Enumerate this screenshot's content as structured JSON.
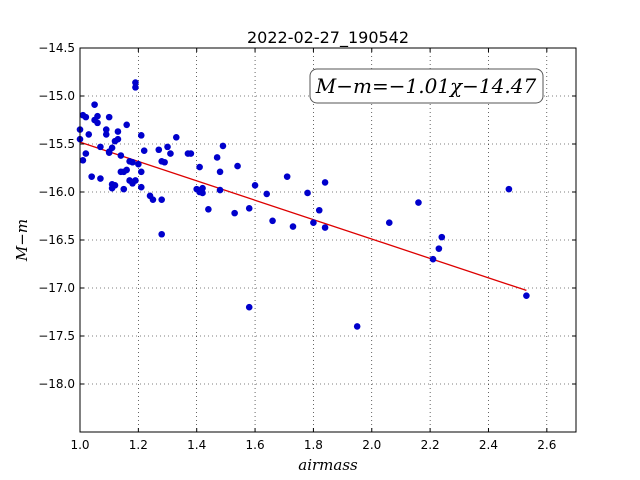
{
  "chart_data": {
    "type": "scatter",
    "title": "2022-02-27_190542",
    "xlabel": "airmass",
    "ylabel": "M−m",
    "annotation": "M−m=−1.01χ−14.47",
    "xlim": [
      1.0,
      2.7
    ],
    "ylim": [
      -18.5,
      -14.5
    ],
    "y_inverted": true,
    "grid": true,
    "x_ticks": [
      "1.0",
      "1.2",
      "1.4",
      "1.6",
      "1.8",
      "2.0",
      "2.2",
      "2.4",
      "2.6"
    ],
    "y_ticks": [
      "−14.5",
      "−15.0",
      "−15.5",
      "−16.0",
      "−16.5",
      "−17.0",
      "−17.5",
      "−18.0"
    ],
    "point_color": "#0000cc",
    "fit_color": "#dd0000",
    "fit": {
      "slope": -1.01,
      "intercept": -14.47,
      "x_range": [
        1.0,
        2.53
      ]
    },
    "points": [
      [
        1.0,
        -15.35
      ],
      [
        1.0,
        -15.45
      ],
      [
        1.01,
        -15.2
      ],
      [
        1.01,
        -15.67
      ],
      [
        1.02,
        -15.22
      ],
      [
        1.02,
        -15.6
      ],
      [
        1.03,
        -15.4
      ],
      [
        1.04,
        -15.84
      ],
      [
        1.05,
        -15.25
      ],
      [
        1.05,
        -15.09
      ],
      [
        1.06,
        -15.21
      ],
      [
        1.06,
        -15.28
      ],
      [
        1.07,
        -15.86
      ],
      [
        1.07,
        -15.53
      ],
      [
        1.09,
        -15.35
      ],
      [
        1.09,
        -15.4
      ],
      [
        1.1,
        -15.59
      ],
      [
        1.1,
        -15.58
      ],
      [
        1.1,
        -15.22
      ],
      [
        1.11,
        -15.92
      ],
      [
        1.11,
        -15.96
      ],
      [
        1.11,
        -15.54
      ],
      [
        1.12,
        -15.47
      ],
      [
        1.12,
        -15.93
      ],
      [
        1.13,
        -15.45
      ],
      [
        1.13,
        -15.37
      ],
      [
        1.14,
        -15.62
      ],
      [
        1.14,
        -15.79
      ],
      [
        1.15,
        -15.79
      ],
      [
        1.15,
        -15.97
      ],
      [
        1.16,
        -15.3
      ],
      [
        1.16,
        -15.77
      ],
      [
        1.17,
        -15.68
      ],
      [
        1.17,
        -15.88
      ],
      [
        1.18,
        -15.69
      ],
      [
        1.18,
        -15.91
      ],
      [
        1.19,
        -14.86
      ],
      [
        1.19,
        -14.91
      ],
      [
        1.19,
        -15.88
      ],
      [
        1.2,
        -15.71
      ],
      [
        1.21,
        -15.79
      ],
      [
        1.21,
        -15.95
      ],
      [
        1.21,
        -15.41
      ],
      [
        1.22,
        -15.57
      ],
      [
        1.24,
        -16.04
      ],
      [
        1.25,
        -16.08
      ],
      [
        1.27,
        -15.56
      ],
      [
        1.28,
        -15.68
      ],
      [
        1.28,
        -16.08
      ],
      [
        1.28,
        -16.44
      ],
      [
        1.29,
        -15.69
      ],
      [
        1.3,
        -15.53
      ],
      [
        1.31,
        -15.6
      ],
      [
        1.33,
        -15.43
      ],
      [
        1.37,
        -15.6
      ],
      [
        1.38,
        -15.6
      ],
      [
        1.4,
        -15.97
      ],
      [
        1.41,
        -16.0
      ],
      [
        1.41,
        -15.74
      ],
      [
        1.42,
        -15.96
      ],
      [
        1.42,
        -16.01
      ],
      [
        1.44,
        -16.18
      ],
      [
        1.47,
        -15.64
      ],
      [
        1.48,
        -15.79
      ],
      [
        1.48,
        -15.98
      ],
      [
        1.49,
        -15.52
      ],
      [
        1.53,
        -16.22
      ],
      [
        1.54,
        -15.73
      ],
      [
        1.58,
        -16.17
      ],
      [
        1.58,
        -17.2
      ],
      [
        1.6,
        -15.93
      ],
      [
        1.64,
        -16.02
      ],
      [
        1.66,
        -16.3
      ],
      [
        1.71,
        -15.84
      ],
      [
        1.73,
        -16.36
      ],
      [
        1.78,
        -16.01
      ],
      [
        1.8,
        -16.32
      ],
      [
        1.82,
        -16.19
      ],
      [
        1.84,
        -15.9
      ],
      [
        1.84,
        -16.37
      ],
      [
        1.95,
        -17.4
      ],
      [
        2.06,
        -16.32
      ],
      [
        2.16,
        -16.11
      ],
      [
        2.21,
        -16.7
      ],
      [
        2.23,
        -16.59
      ],
      [
        2.24,
        -16.47
      ],
      [
        2.47,
        -15.97
      ],
      [
        2.53,
        -17.08
      ]
    ]
  }
}
